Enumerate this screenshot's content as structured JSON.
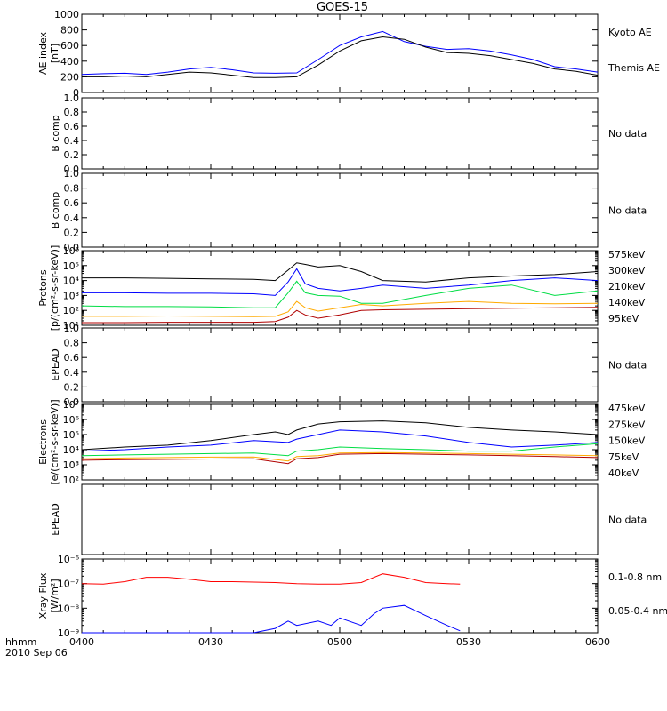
{
  "title": "GOES-15",
  "footer": {
    "hhmm": "hhmm",
    "date": "2010 Sep 06"
  },
  "x_ticks": [
    "0400",
    "0430",
    "0500",
    "0530",
    "0600"
  ],
  "colors": {
    "black": "#000000",
    "blue": "#0000ff",
    "green": "#00dd44",
    "orange": "#ffaa00",
    "red": "#cc0000",
    "darkred": "#b00000"
  },
  "chart_data": [
    {
      "panel": "ae",
      "type": "line",
      "ylabel": "AE index",
      "yunit": "[nT]",
      "ylim": [
        0,
        1000
      ],
      "yticks": [
        "0",
        "200",
        "400",
        "600",
        "800",
        "1000"
      ],
      "series": [
        {
          "name": "Kyoto AE",
          "color": "#0000ff",
          "x": [
            0,
            5,
            10,
            15,
            20,
            25,
            30,
            35,
            40,
            45,
            50,
            55,
            60,
            65,
            70,
            75,
            80,
            85,
            90,
            95,
            100,
            105,
            110,
            115,
            120
          ],
          "y": [
            230,
            240,
            245,
            230,
            260,
            300,
            320,
            290,
            250,
            245,
            250,
            420,
            600,
            710,
            780,
            650,
            590,
            550,
            560,
            530,
            480,
            420,
            330,
            300,
            260
          ]
        },
        {
          "name": "Themis AE",
          "color": "#000000",
          "x": [
            0,
            5,
            10,
            15,
            20,
            25,
            30,
            35,
            40,
            45,
            50,
            55,
            60,
            65,
            70,
            75,
            80,
            85,
            90,
            95,
            100,
            105,
            110,
            115,
            120
          ],
          "y": [
            200,
            200,
            210,
            200,
            230,
            260,
            250,
            220,
            190,
            190,
            200,
            350,
            530,
            660,
            710,
            680,
            580,
            510,
            500,
            470,
            420,
            370,
            300,
            270,
            220
          ]
        }
      ]
    },
    {
      "panel": "bcomp1",
      "type": "line",
      "ylabel": "B comp",
      "ylim": [
        0,
        1
      ],
      "yticks": [
        "0.0",
        "0.2",
        "0.4",
        "0.6",
        "0.8",
        "1.0"
      ],
      "note": "No data",
      "series": []
    },
    {
      "panel": "bcomp2",
      "type": "line",
      "ylabel": "B comp",
      "ylim": [
        0,
        1
      ],
      "yticks": [
        "0.0",
        "0.2",
        "0.4",
        "0.6",
        "0.8",
        "1.0"
      ],
      "note": "No data",
      "series": []
    },
    {
      "panel": "protons",
      "type": "line",
      "ylabel": "Protons",
      "yunit": "[p/(cm²-s-sr-keV)]",
      "ylim": [
        10,
        1000000
      ],
      "log": true,
      "yticks": [
        "10¹",
        "10²",
        "10³",
        "10⁴",
        "10⁵",
        "10⁶"
      ],
      "series": [
        {
          "name": "575keV",
          "color": "#b00000",
          "x": [
            0,
            10,
            20,
            30,
            40,
            45,
            48,
            50,
            52,
            55,
            60,
            65,
            70,
            80,
            90,
            100,
            110,
            120
          ],
          "y": [
            15,
            15,
            16,
            16,
            16,
            18,
            35,
            100,
            50,
            30,
            50,
            100,
            110,
            120,
            130,
            140,
            150,
            160
          ]
        },
        {
          "name": "300keV",
          "color": "#ffaa00",
          "x": [
            0,
            10,
            20,
            30,
            40,
            45,
            48,
            50,
            52,
            55,
            60,
            65,
            70,
            80,
            90,
            100,
            110,
            120
          ],
          "y": [
            40,
            40,
            42,
            40,
            38,
            40,
            80,
            400,
            150,
            90,
            150,
            250,
            200,
            300,
            400,
            300,
            280,
            300
          ]
        },
        {
          "name": "210keV",
          "color": "#00dd44",
          "x": [
            0,
            10,
            20,
            30,
            40,
            45,
            48,
            50,
            52,
            55,
            60,
            65,
            70,
            80,
            90,
            100,
            110,
            120
          ],
          "y": [
            200,
            180,
            180,
            170,
            150,
            150,
            1500,
            9000,
            1500,
            1000,
            900,
            300,
            300,
            1000,
            3000,
            5000,
            1000,
            2000
          ]
        },
        {
          "name": "140keV",
          "color": "#0000ff",
          "x": [
            0,
            10,
            20,
            30,
            40,
            45,
            48,
            50,
            52,
            55,
            60,
            65,
            70,
            80,
            90,
            100,
            110,
            120
          ],
          "y": [
            1500,
            1500,
            1400,
            1400,
            1300,
            1000,
            8000,
            60000,
            6000,
            3000,
            2000,
            3000,
            5000,
            3000,
            5000,
            10000,
            15000,
            10000
          ]
        },
        {
          "name": "95keV",
          "color": "#000000",
          "x": [
            0,
            10,
            20,
            30,
            40,
            45,
            48,
            50,
            52,
            55,
            60,
            65,
            70,
            80,
            90,
            100,
            110,
            120
          ],
          "y": [
            15000,
            15000,
            14000,
            13000,
            12000,
            10000,
            50000,
            150000,
            120000,
            80000,
            100000,
            40000,
            10000,
            8000,
            15000,
            20000,
            25000,
            40000
          ]
        }
      ]
    },
    {
      "panel": "epead1",
      "type": "line",
      "ylabel": "EPEAD",
      "ylim": [
        0,
        1
      ],
      "yticks": [
        "0.0",
        "0.2",
        "0.4",
        "0.6",
        "0.8",
        "1.0"
      ],
      "note": "No data",
      "series": []
    },
    {
      "panel": "electrons",
      "type": "line",
      "ylabel": "Electrons",
      "yunit": "[e/(cm²-s-sr-keV)]",
      "ylim": [
        100,
        10000000
      ],
      "log": true,
      "yticks": [
        "10²",
        "10³",
        "10⁴",
        "10⁵",
        "10⁶",
        "10⁷"
      ],
      "series": [
        {
          "name": "475keV",
          "color": "#b00000",
          "x": [
            0,
            10,
            20,
            30,
            40,
            48,
            50,
            55,
            60,
            70,
            80,
            90,
            100,
            110,
            120
          ],
          "y": [
            2000,
            2200,
            2300,
            2400,
            2500,
            1200,
            2500,
            3000,
            5000,
            5500,
            5000,
            4500,
            4000,
            3500,
            3000
          ]
        },
        {
          "name": "275keV",
          "color": "#ffaa00",
          "x": [
            0,
            10,
            20,
            30,
            40,
            48,
            50,
            55,
            60,
            70,
            80,
            90,
            100,
            110,
            120
          ],
          "y": [
            2500,
            2800,
            3000,
            3200,
            3300,
            1800,
            3500,
            4000,
            6000,
            6500,
            6000,
            5500,
            5000,
            4500,
            4000
          ]
        },
        {
          "name": "150keV",
          "color": "#00dd44",
          "x": [
            0,
            10,
            20,
            30,
            40,
            48,
            50,
            55,
            60,
            70,
            80,
            90,
            100,
            110,
            120
          ],
          "y": [
            4000,
            4500,
            5000,
            5500,
            6000,
            4000,
            8000,
            10000,
            15000,
            12000,
            10000,
            8000,
            8000,
            15000,
            25000
          ]
        },
        {
          "name": "75keV",
          "color": "#0000ff",
          "x": [
            0,
            10,
            20,
            30,
            40,
            48,
            50,
            55,
            60,
            70,
            80,
            90,
            100,
            110,
            120
          ],
          "y": [
            8000,
            10000,
            15000,
            20000,
            40000,
            30000,
            50000,
            100000,
            200000,
            150000,
            80000,
            30000,
            15000,
            20000,
            30000
          ]
        },
        {
          "name": "40keV",
          "color": "#000000",
          "x": [
            0,
            10,
            20,
            30,
            40,
            45,
            48,
            50,
            55,
            60,
            70,
            80,
            90,
            100,
            110,
            120
          ],
          "y": [
            10000,
            15000,
            20000,
            40000,
            100000,
            150000,
            100000,
            200000,
            500000,
            700000,
            800000,
            600000,
            300000,
            200000,
            150000,
            100000
          ]
        }
      ]
    },
    {
      "panel": "epead2",
      "type": "line",
      "ylabel": "EPEAD",
      "ylim": [
        0,
        1
      ],
      "yticks": [],
      "note": "No data",
      "series": []
    },
    {
      "panel": "xray",
      "type": "line",
      "ylabel": "Xray Flux",
      "yunit": "[W/m²]",
      "ylim": [
        1e-09,
        1e-06
      ],
      "log": true,
      "yticks": [
        "10⁻⁹",
        "10⁻⁸",
        "10⁻⁷",
        "10⁻⁶"
      ],
      "series": [
        {
          "name": "0.1-0.8 nm",
          "color": "#ff0000",
          "x": [
            0,
            5,
            10,
            15,
            20,
            25,
            30,
            35,
            40,
            45,
            50,
            55,
            60,
            65,
            70,
            75,
            80,
            85,
            88
          ],
          "y": [
            1e-07,
            9.5e-08,
            1.2e-07,
            1.8e-07,
            1.8e-07,
            1.5e-07,
            1.2e-07,
            1.2e-07,
            1.15e-07,
            1.1e-07,
            1e-07,
            9.5e-08,
            9.5e-08,
            1.1e-07,
            2.5e-07,
            1.8e-07,
            1.1e-07,
            1e-07,
            9.5e-08
          ]
        },
        {
          "name": "0.05-0.4 nm",
          "color": "#0000ff",
          "x": [
            0,
            20,
            30,
            40,
            45,
            48,
            50,
            55,
            58,
            60,
            65,
            68,
            70,
            75,
            80,
            85,
            88
          ],
          "y": [
            1e-09,
            1e-09,
            1e-09,
            1e-09,
            1.5e-09,
            3e-09,
            2e-09,
            3e-09,
            2e-09,
            4e-09,
            2e-09,
            6e-09,
            1e-08,
            1.3e-08,
            5e-09,
            2e-09,
            1.2e-09
          ]
        }
      ]
    }
  ]
}
